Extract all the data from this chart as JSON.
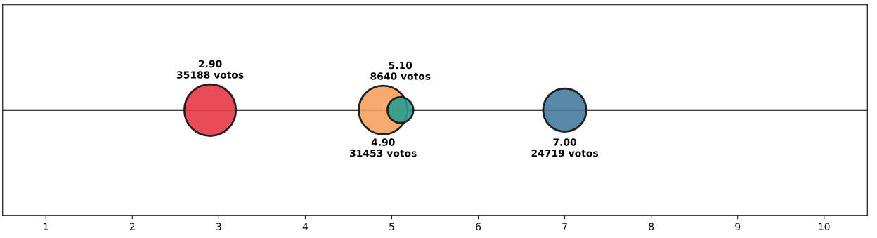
{
  "chart_data": {
    "type": "bubble",
    "orientation": "horizontal",
    "categories": [
      null
    ],
    "series": [
      {
        "color": "#e63946",
        "values": [
          2.9
        ],
        "sizes": [
          1
        ],
        "value_labels": [
          "2.90\n35188 votos"
        ]
      },
      {
        "color": "#f4a261",
        "values": [
          4.9
        ],
        "sizes": [
          0.89
        ],
        "value_labels": [
          "4.90\n31453 votos"
        ]
      },
      {
        "color": "#2a9d8f",
        "values": [
          5.1
        ],
        "sizes": [
          0.25
        ],
        "value_labels": [
          "5.10\n8640 votos"
        ]
      },
      {
        "color": "#457b9d",
        "values": [
          7.0
        ],
        "sizes": [
          0.7
        ],
        "value_labels": [
          "7.00\n24719 votos"
        ]
      }
    ],
    "xlim": [
      0.5,
      10.5
    ],
    "xticks": [
      1,
      2,
      3,
      4,
      5,
      6,
      7,
      8,
      9,
      10
    ],
    "tick_labels": "x"
  }
}
